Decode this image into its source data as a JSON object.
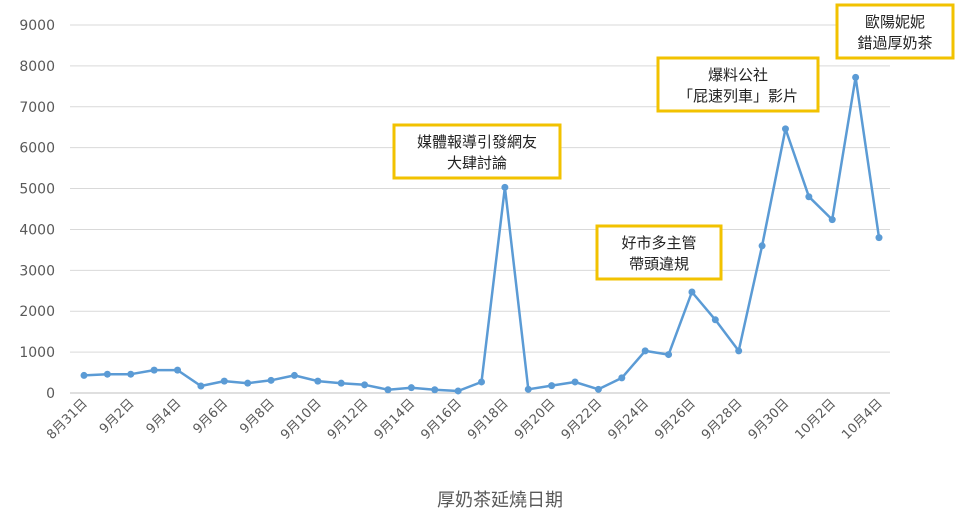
{
  "chart_data": {
    "type": "line",
    "title": "",
    "xlabel": "厚奶茶延燒日期",
    "ylabel": "",
    "ylim": [
      0,
      9000
    ],
    "yticks": [
      0,
      1000,
      2000,
      3000,
      4000,
      5000,
      6000,
      7000,
      8000,
      9000
    ],
    "grid": "horizontal",
    "x": [
      "8月31日",
      "9月1日",
      "9月2日",
      "9月3日",
      "9月4日",
      "9月5日",
      "9月6日",
      "9月7日",
      "9月8日",
      "9月9日",
      "9月10日",
      "9月11日",
      "9月12日",
      "9月13日",
      "9月14日",
      "9月15日",
      "9月16日",
      "9月17日",
      "9月18日",
      "9月19日",
      "9月20日",
      "9月21日",
      "9月22日",
      "9月23日",
      "9月24日",
      "9月25日",
      "9月26日",
      "9月27日",
      "9月28日",
      "9月29日",
      "9月30日",
      "10月1日",
      "10月2日",
      "10月3日",
      "10月4日"
    ],
    "x_tick_labels": [
      "8月31日",
      "9月2日",
      "9月4日",
      "9月6日",
      "9月8日",
      "9月10日",
      "9月12日",
      "9月14日",
      "9月16日",
      "9月18日",
      "9月20日",
      "9月22日",
      "9月24日",
      "9月26日",
      "9月28日",
      "9月30日",
      "10月2日",
      "10月4日"
    ],
    "series": [
      {
        "values": [
          430,
          460,
          460,
          560,
          560,
          170,
          290,
          240,
          310,
          430,
          290,
          240,
          200,
          80,
          130,
          80,
          50,
          270,
          5030,
          90,
          180,
          270,
          90,
          370,
          1030,
          940,
          2470,
          1790,
          1030,
          3600,
          6460,
          4800,
          4240,
          7720,
          3800
        ]
      }
    ],
    "line_color": "#5b9bd5",
    "annotations": [
      {
        "lines": [
          "媒體報導引發網友",
          "大肆討論"
        ],
        "x": "9月18日"
      },
      {
        "lines": [
          "好市多主管",
          "帶頭違規"
        ],
        "x": "9月26日"
      },
      {
        "lines": [
          "爆料公社",
          "「屁速列車」影片"
        ],
        "x": "9月30日"
      },
      {
        "lines": [
          "歐陽妮妮",
          "錯過厚奶茶"
        ],
        "x": "10月3日"
      }
    ],
    "annotation_border_color": "#f2c200"
  }
}
